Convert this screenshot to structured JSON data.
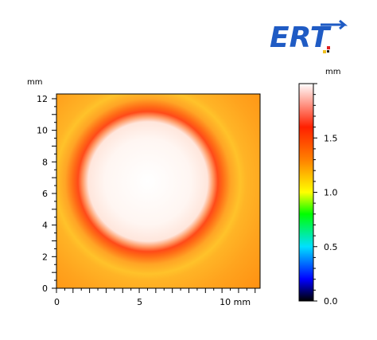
{
  "logo": {
    "text": "ERT",
    "color": "#1f5bc4"
  },
  "chart_data": {
    "type": "heatmap",
    "title": "",
    "xlabel": "",
    "ylabel": "",
    "x_unit": "mm",
    "y_unit": "mm",
    "xlim": [
      0,
      12.3
    ],
    "ylim": [
      0,
      12.3
    ],
    "x_ticks": [
      {
        "value": 0,
        "label": "0"
      },
      {
        "value": 5,
        "label": "5"
      },
      {
        "value": 10,
        "label": "10 mm"
      }
    ],
    "y_ticks": [
      {
        "value": 0,
        "label": "0"
      },
      {
        "value": 2,
        "label": "2"
      },
      {
        "value": 4,
        "label": "4"
      },
      {
        "value": 6,
        "label": "6"
      },
      {
        "value": 8,
        "label": "8"
      },
      {
        "value": 10,
        "label": "10"
      },
      {
        "value": 12,
        "label": "12"
      }
    ],
    "feature": {
      "shape": "circular disk",
      "center_x": 5.6,
      "center_y": 6.9,
      "radius": 4.4,
      "inner_value": 1.95,
      "rim_value": 1.5,
      "background_value": 1.35
    },
    "colorbar": {
      "unit": "mm",
      "range": [
        0.0,
        2.0
      ],
      "ticks": [
        {
          "value": 0.0,
          "label": "0.0"
        },
        {
          "value": 0.5,
          "label": "0.5"
        },
        {
          "value": 1.0,
          "label": "1.0"
        },
        {
          "value": 1.5,
          "label": "1.5"
        }
      ],
      "colors": [
        "#000000",
        "#0000ff",
        "#00e0ff",
        "#00ff00",
        "#ffff00",
        "#ff8000",
        "#ff2000",
        "#ffffff"
      ]
    }
  }
}
